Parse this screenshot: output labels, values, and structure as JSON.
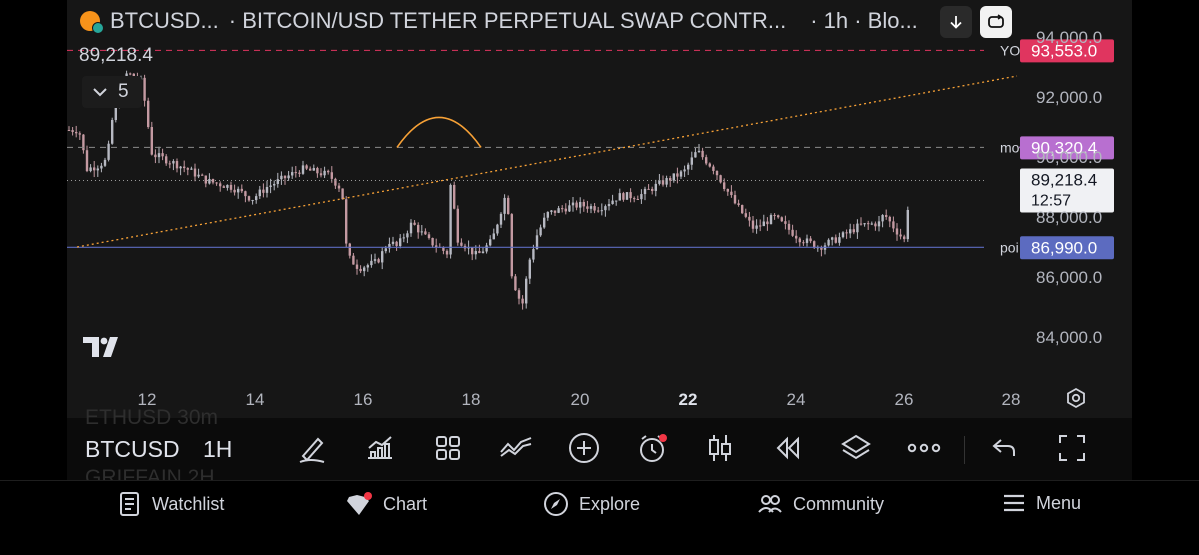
{
  "header": {
    "symbol": "BTCUSD...",
    "description": "· BITCOIN/USD TETHER PERPETUAL SWAP CONTR...",
    "interval_source": "· 1h · Blo..."
  },
  "chart": {
    "last_price_text": "89,218.4",
    "indicator_count": "5",
    "price_axis": [
      "94,000.0",
      "92,000.0",
      "90,000.0",
      "88,000.0",
      "86,000.0",
      "84,000.0"
    ],
    "date_axis": [
      "12",
      "14",
      "16",
      "18",
      "20",
      "22",
      "24",
      "26",
      "28"
    ],
    "watermark": "TV",
    "levels": [
      {
        "label": "YO",
        "value": "93,553.0",
        "color": "#e0355f"
      },
      {
        "label": "mo",
        "value": "90,320.4",
        "color": "#b86fd0"
      },
      {
        "label": "poi",
        "value": "86,990.0",
        "color": "#5c6bc0"
      }
    ],
    "current_price_badge": {
      "price": "89,218.4",
      "countdown": "12:57"
    },
    "colors": {
      "up": "#b7b9c2",
      "down": "#c49aa2",
      "trendline": "#f7a136",
      "arc": "#f7a136"
    }
  },
  "toolbar": {
    "symbol": "BTCUSD",
    "interval": "1H",
    "ghost_above": "ETHUSD   30m",
    "ghost_below": "GRIFFAIN   2H",
    "icons": [
      "draw-icon",
      "indicators-icon",
      "layout-grid-icon",
      "compare-icon",
      "add-icon",
      "alert-icon",
      "candles-icon",
      "replay-icon",
      "layers-icon",
      "more-icon",
      "undo-icon",
      "fullscreen-icon"
    ]
  },
  "nav": {
    "items": [
      {
        "label": "Watchlist",
        "icon": "watchlist-icon"
      },
      {
        "label": "Chart",
        "icon": "chart-icon"
      },
      {
        "label": "Explore",
        "icon": "compass-icon"
      },
      {
        "label": "Community",
        "icon": "community-icon"
      },
      {
        "label": "Menu",
        "icon": "menu-icon"
      }
    ]
  }
}
